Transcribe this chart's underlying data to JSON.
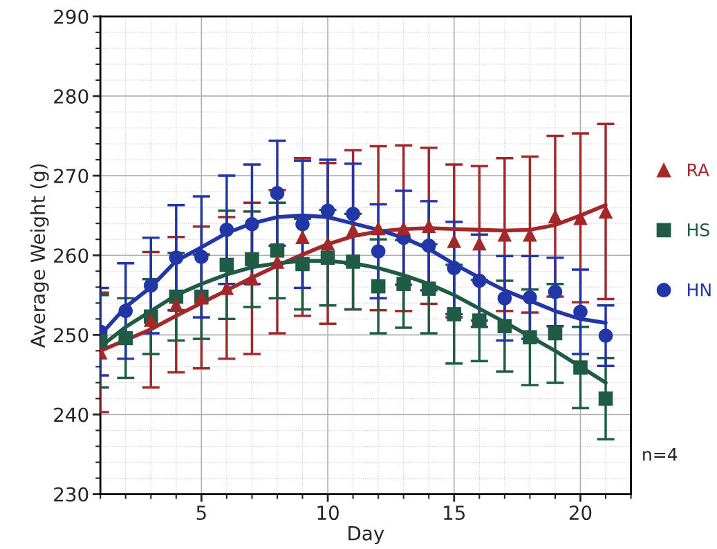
{
  "chart_data": {
    "type": "scatter",
    "xlabel": "Day",
    "ylabel": "Average Weight (g)",
    "x": [
      1,
      2,
      3,
      4,
      5,
      6,
      7,
      8,
      9,
      10,
      11,
      12,
      13,
      14,
      15,
      16,
      17,
      18,
      19,
      20,
      21
    ],
    "xlim": [
      1,
      22
    ],
    "xticks": [
      5,
      10,
      15,
      20
    ],
    "ylim": [
      230,
      290
    ],
    "yticks": [
      230,
      240,
      250,
      260,
      270,
      280,
      290
    ],
    "grid": true,
    "legend": "right",
    "annotations": [
      "n=4"
    ],
    "series": [
      {
        "name": "RA",
        "color": "#a3282a",
        "marker": "triangle",
        "values": [
          247.8,
          null,
          251.9,
          253.8,
          254.7,
          255.9,
          257.1,
          259.2,
          262.3,
          261.5,
          263.2,
          263.4,
          263.4,
          263.7,
          261.8,
          261.5,
          262.6,
          262.6,
          264.9,
          264.7,
          265.5
        ],
        "errors": [
          7.5,
          null,
          8.5,
          8.5,
          8.9,
          8.9,
          9.5,
          9.0,
          9.9,
          10.1,
          10.0,
          10.3,
          10.4,
          9.8,
          9.6,
          9.7,
          9.6,
          9.8,
          10.1,
          10.6,
          11.0
        ]
      },
      {
        "name": "HS",
        "color": "#1f5b45",
        "marker": "square",
        "values": [
          249.2,
          249.6,
          252.3,
          254.8,
          254.8,
          258.8,
          259.5,
          260.6,
          258.9,
          259.7,
          259.2,
          256.1,
          256.4,
          255.8,
          252.6,
          251.8,
          251.1,
          249.7,
          250.2,
          245.9,
          242.0
        ],
        "errors": [
          5.8,
          5.0,
          4.7,
          5.5,
          5.3,
          6.8,
          6.0,
          6.0,
          5.7,
          6.0,
          6.0,
          5.9,
          5.5,
          5.6,
          6.2,
          5.1,
          5.7,
          6.0,
          6.2,
          5.1,
          5.1
        ]
      },
      {
        "name": "HN",
        "color": "#2236a8",
        "marker": "circle",
        "values": [
          250.4,
          253.0,
          256.2,
          259.7,
          259.8,
          263.2,
          263.9,
          267.8,
          263.9,
          265.6,
          265.2,
          260.5,
          262.2,
          261.2,
          258.4,
          256.8,
          254.6,
          254.7,
          255.4,
          252.9,
          249.9
        ],
        "errors": [
          5.5,
          6.0,
          6.0,
          6.6,
          7.6,
          6.8,
          7.5,
          6.6,
          8.0,
          6.4,
          6.3,
          5.9,
          5.9,
          5.6,
          5.8,
          5.8,
          5.3,
          5.2,
          4.3,
          5.3,
          3.8
        ]
      },
      {
        "type": "line",
        "color": "#a3282a",
        "marker": "none",
        "x": [
          1,
          3,
          4,
          5,
          6,
          7,
          8,
          9,
          10,
          11,
          12,
          13,
          14,
          15,
          16,
          17,
          18,
          19,
          20,
          21
        ],
        "values": [
          248.0,
          250.7,
          252.4,
          254.0,
          255.6,
          257.2,
          258.7,
          260.1,
          261.4,
          262.4,
          263.0,
          263.3,
          263.4,
          263.3,
          263.2,
          263.1,
          263.2,
          263.8,
          265.0,
          266.3
        ]
      },
      {
        "type": "line",
        "color": "#1f5b45",
        "marker": "none",
        "values": [
          248.5,
          251.0,
          253.0,
          255.0,
          256.4,
          257.6,
          258.5,
          259.0,
          259.3,
          259.3,
          259.0,
          258.4,
          257.5,
          256.4,
          255.0,
          253.3,
          251.6,
          249.8,
          248.0,
          246.0,
          244.0
        ]
      },
      {
        "type": "line",
        "color": "#2236a8",
        "marker": "none",
        "values": [
          250.0,
          253.5,
          256.0,
          259.3,
          261.0,
          262.8,
          264.0,
          264.8,
          265.0,
          264.8,
          264.0,
          263.2,
          262.2,
          260.8,
          258.9,
          257.2,
          255.6,
          254.3,
          253.0,
          252.0,
          251.5
        ]
      }
    ]
  }
}
